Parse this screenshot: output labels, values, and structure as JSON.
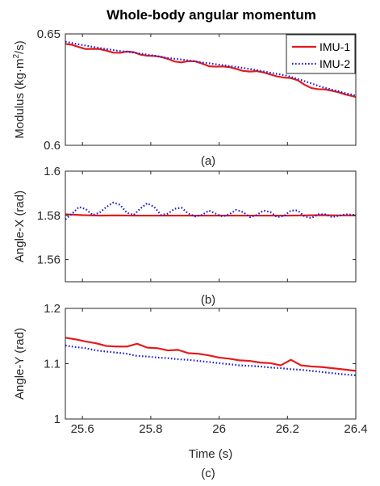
{
  "chart_data": {
    "title": "Whole-body angular momentum",
    "type": "line",
    "x_label": "Time (s)",
    "xlim": [
      25.55,
      26.4
    ],
    "x_ticks": [
      25.6,
      25.8,
      26,
      26.2,
      26.4
    ],
    "x_tick_labels": [
      "25.6",
      "25.8",
      "26",
      "26.2",
      "26.4"
    ],
    "legend": {
      "placement": "top-right",
      "entries": [
        {
          "name": "IMU-1",
          "color": "#e41a1c",
          "style": "solid"
        },
        {
          "name": "IMU-2",
          "color": "#1f1fd6",
          "style": "dotted"
        }
      ]
    },
    "panels": [
      {
        "id": "a",
        "caption": "(a)",
        "ylabel_main": "Modulus (kg·m",
        "ylabel_sup": "2",
        "ylabel_tail": "/s)",
        "ylim": [
          0.6,
          0.65
        ],
        "y_ticks": [
          0.6,
          0.65
        ],
        "y_tick_labels": [
          "0.6",
          "0.65"
        ],
        "series": [
          {
            "name": "IMU-1",
            "color": "#e41a1c",
            "style": "solid",
            "x": [
              25.55,
              25.57,
              25.59,
              25.61,
              25.63,
              25.65,
              25.67,
              25.69,
              25.71,
              25.73,
              25.75,
              25.77,
              25.79,
              25.81,
              25.83,
              25.85,
              25.87,
              25.89,
              25.91,
              25.93,
              25.95,
              25.97,
              25.99,
              26.01,
              26.03,
              26.05,
              26.07,
              26.09,
              26.11,
              26.13,
              26.15,
              26.17,
              26.19,
              26.21,
              26.23,
              26.25,
              26.27,
              26.29,
              26.31,
              26.33,
              26.35,
              26.37,
              26.4
            ],
            "y": [
              0.6455,
              0.6451,
              0.6441,
              0.6432,
              0.6433,
              0.6432,
              0.6425,
              0.6416,
              0.6415,
              0.6421,
              0.6418,
              0.6407,
              0.6402,
              0.6401,
              0.6397,
              0.6388,
              0.6376,
              0.6372,
              0.6378,
              0.6377,
              0.6367,
              0.6355,
              0.6353,
              0.6354,
              0.6351,
              0.6343,
              0.6334,
              0.6331,
              0.6333,
              0.6327,
              0.6318,
              0.6309,
              0.6304,
              0.6302,
              0.6292,
              0.6272,
              0.6257,
              0.6252,
              0.6251,
              0.6245,
              0.6238,
              0.6228,
              0.6217
            ]
          },
          {
            "name": "IMU-2",
            "color": "#1f1fd6",
            "style": "dotted",
            "x": [
              25.55,
              25.6,
              25.65,
              25.7,
              25.75,
              25.8,
              25.85,
              25.9,
              25.95,
              26,
              26.05,
              26.1,
              26.15,
              26.2,
              26.25,
              26.3,
              26.35,
              26.4
            ],
            "y": [
              0.6465,
              0.645,
              0.6437,
              0.6425,
              0.6416,
              0.6405,
              0.6392,
              0.6383,
              0.6372,
              0.6362,
              0.6352,
              0.634,
              0.6326,
              0.6312,
              0.6288,
              0.6262,
              0.6242,
              0.6223
            ]
          }
        ]
      },
      {
        "id": "b",
        "caption": "(b)",
        "ylabel_main": "Angle-X (rad)",
        "ylim": [
          1.55,
          1.6
        ],
        "y_ticks": [
          1.56,
          1.58,
          1.6
        ],
        "y_tick_labels": [
          "1.56",
          "1.58",
          "1.6"
        ],
        "series": [
          {
            "name": "IMU-1",
            "color": "#e41a1c",
            "style": "solid",
            "x": [
              25.55,
              25.6,
              25.65,
              25.7,
              25.75,
              25.8,
              25.85,
              25.9,
              25.95,
              26,
              26.05,
              26.1,
              26.15,
              26.2,
              26.25,
              26.3,
              26.35,
              26.4
            ],
            "y": [
              1.5805,
              1.5801,
              1.5799,
              1.58,
              1.5799,
              1.5799,
              1.5799,
              1.5799,
              1.5799,
              1.5799,
              1.5799,
              1.5799,
              1.5799,
              1.5799,
              1.58,
              1.5801,
              1.58,
              1.58
            ]
          },
          {
            "name": "IMU-2",
            "color": "#1f1fd6",
            "style": "dotted",
            "x": [
              25.55,
              25.57,
              25.59,
              25.61,
              25.63,
              25.65,
              25.67,
              25.69,
              25.71,
              25.73,
              25.75,
              25.77,
              25.79,
              25.81,
              25.83,
              25.85,
              25.87,
              25.89,
              25.91,
              25.93,
              25.95,
              25.97,
              25.99,
              26.01,
              26.03,
              26.05,
              26.07,
              26.09,
              26.11,
              26.13,
              26.15,
              26.17,
              26.19,
              26.21,
              26.23,
              26.25,
              26.27,
              26.29,
              26.31,
              26.33,
              26.35,
              26.37,
              26.4
            ],
            "y": [
              1.5782,
              1.5808,
              1.5838,
              1.5828,
              1.5802,
              1.5812,
              1.5838,
              1.5858,
              1.5848,
              1.5812,
              1.5802,
              1.5832,
              1.5855,
              1.5838,
              1.5802,
              1.5808,
              1.583,
              1.5835,
              1.5808,
              1.5795,
              1.5802,
              1.5822,
              1.5808,
              1.5795,
              1.5805,
              1.5825,
              1.5815,
              1.5792,
              1.5802,
              1.5822,
              1.5815,
              1.5792,
              1.5798,
              1.5822,
              1.5822,
              1.5795,
              1.5788,
              1.5805,
              1.5805,
              1.5792,
              1.5798,
              1.5805,
              1.5802
            ]
          }
        ]
      },
      {
        "id": "c",
        "caption": "(c)",
        "ylabel_main": "Angle-Y (rad)",
        "ylim": [
          1.0,
          1.2
        ],
        "y_ticks": [
          1.0,
          1.1,
          1.2
        ],
        "y_tick_labels": [
          "1",
          "1.1",
          "1.2"
        ],
        "series": [
          {
            "name": "IMU-1",
            "color": "#e41a1c",
            "style": "solid",
            "x": [
              25.55,
              25.58,
              25.61,
              25.64,
              25.67,
              25.7,
              25.73,
              25.76,
              25.79,
              25.82,
              25.85,
              25.88,
              25.91,
              25.94,
              25.97,
              26,
              26.03,
              26.06,
              26.09,
              26.12,
              26.15,
              26.18,
              26.21,
              26.24,
              26.27,
              26.3,
              26.33,
              26.36,
              26.4
            ],
            "y": [
              1.147,
              1.144,
              1.14,
              1.137,
              1.132,
              1.131,
              1.131,
              1.136,
              1.129,
              1.128,
              1.124,
              1.125,
              1.119,
              1.118,
              1.115,
              1.111,
              1.109,
              1.106,
              1.105,
              1.102,
              1.101,
              1.097,
              1.107,
              1.097,
              1.095,
              1.094,
              1.092,
              1.09,
              1.087
            ]
          },
          {
            "name": "IMU-2",
            "color": "#1f1fd6",
            "style": "dotted",
            "x": [
              25.55,
              25.58,
              25.61,
              25.64,
              25.67,
              25.7,
              25.73,
              25.76,
              25.79,
              25.82,
              25.85,
              25.88,
              25.91,
              25.94,
              25.97,
              26,
              26.03,
              26.06,
              26.09,
              26.12,
              26.15,
              26.18,
              26.21,
              26.24,
              26.27,
              26.3,
              26.33,
              26.36,
              26.4
            ],
            "y": [
              1.133,
              1.13,
              1.128,
              1.124,
              1.122,
              1.12,
              1.118,
              1.114,
              1.113,
              1.111,
              1.11,
              1.108,
              1.107,
              1.105,
              1.103,
              1.101,
              1.099,
              1.097,
              1.096,
              1.095,
              1.093,
              1.092,
              1.09,
              1.089,
              1.087,
              1.085,
              1.083,
              1.081,
              1.079
            ]
          }
        ]
      }
    ]
  }
}
